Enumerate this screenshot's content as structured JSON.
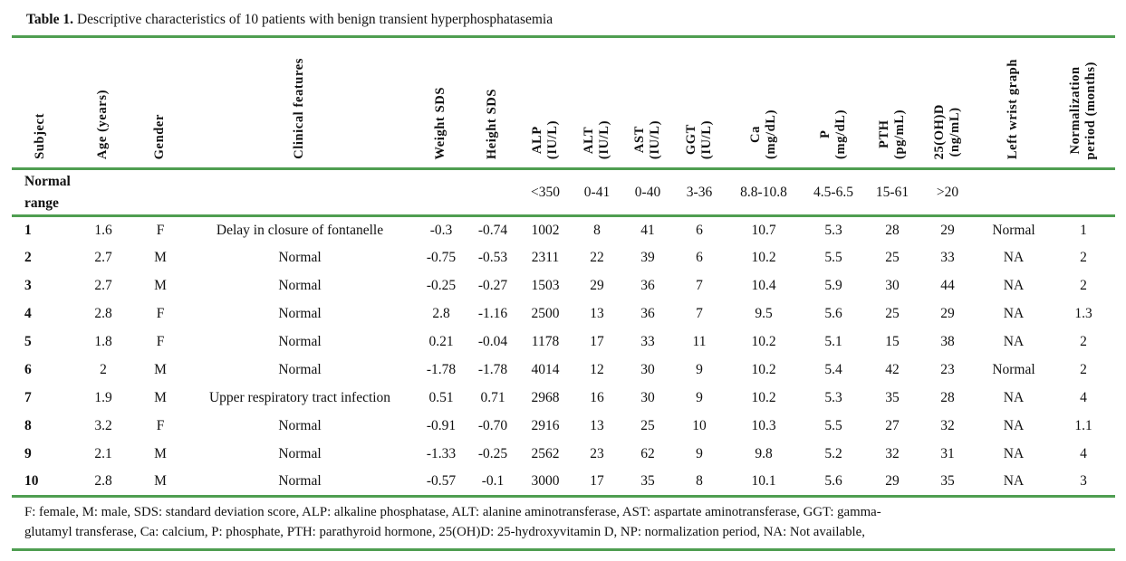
{
  "title": {
    "prefix": "Table 1.",
    "text": "Descriptive characteristics of 10 patients with benign transient hyperphosphatasemia"
  },
  "table": {
    "columns": [
      {
        "id": "subject",
        "label_lines": [
          "Subject"
        ]
      },
      {
        "id": "age",
        "label_lines": [
          "Age (years)"
        ]
      },
      {
        "id": "gender",
        "label_lines": [
          "Gender"
        ]
      },
      {
        "id": "clinical",
        "label_lines": [
          "Clinical features"
        ]
      },
      {
        "id": "weight_sds",
        "label_lines": [
          "Weight SDS"
        ]
      },
      {
        "id": "height_sds",
        "label_lines": [
          "Height SDS"
        ]
      },
      {
        "id": "alp",
        "label_lines": [
          "ALP",
          "(IU/L)"
        ]
      },
      {
        "id": "alt",
        "label_lines": [
          "ALT",
          "(IU/L)"
        ]
      },
      {
        "id": "ast",
        "label_lines": [
          "AST",
          "(IU/L)"
        ]
      },
      {
        "id": "ggt",
        "label_lines": [
          "GGT",
          "(IU/L)"
        ]
      },
      {
        "id": "ca",
        "label_lines": [
          "Ca",
          "(mg/dL)"
        ]
      },
      {
        "id": "p",
        "label_lines": [
          "P",
          "(mg/dL)"
        ]
      },
      {
        "id": "pth",
        "label_lines": [
          "PTH",
          "(pg/mL)"
        ]
      },
      {
        "id": "vitd",
        "label_lines": [
          "25(OH)D",
          "(ng/mL)"
        ]
      },
      {
        "id": "wrist",
        "label_lines": [
          "Left wrist graph"
        ]
      },
      {
        "id": "np",
        "label_lines": [
          "Normalization",
          "period (months)"
        ]
      }
    ],
    "normal_range": {
      "label_lines": [
        "Normal",
        "range"
      ],
      "values": {
        "alp": "<350",
        "alt": "0-41",
        "ast": "0-40",
        "ggt": "3-36",
        "ca": "8.8-10.8",
        "p": "4.5-6.5",
        "pth": "15-61",
        "vitd": ">20"
      }
    },
    "rows": [
      [
        "1",
        "1.6",
        "F",
        "Delay in closure of fontanelle",
        "-0.3",
        "-0.74",
        "1002",
        "8",
        "41",
        "6",
        "10.7",
        "5.3",
        "28",
        "29",
        "Normal",
        "1"
      ],
      [
        "2",
        "2.7",
        "M",
        "Normal",
        "-0.75",
        "-0.53",
        "2311",
        "22",
        "39",
        "6",
        "10.2",
        "5.5",
        "25",
        "33",
        "NA",
        "2"
      ],
      [
        "3",
        "2.7",
        "M",
        "Normal",
        "-0.25",
        "-0.27",
        "1503",
        "29",
        "36",
        "7",
        "10.4",
        "5.9",
        "30",
        "44",
        "NA",
        "2"
      ],
      [
        "4",
        "2.8",
        "F",
        "Normal",
        "2.8",
        "-1.16",
        "2500",
        "13",
        "36",
        "7",
        "9.5",
        "5.6",
        "25",
        "29",
        "NA",
        "1.3"
      ],
      [
        "5",
        "1.8",
        "F",
        "Normal",
        "0.21",
        "-0.04",
        "1178",
        "17",
        "33",
        "11",
        "10.2",
        "5.1",
        "15",
        "38",
        "NA",
        "2"
      ],
      [
        "6",
        "2",
        "M",
        "Normal",
        "-1.78",
        "-1.78",
        "4014",
        "12",
        "30",
        "9",
        "10.2",
        "5.4",
        "42",
        "23",
        "Normal",
        "2"
      ],
      [
        "7",
        "1.9",
        "M",
        "Upper respiratory tract infection",
        "0.51",
        "0.71",
        "2968",
        "16",
        "30",
        "9",
        "10.2",
        "5.3",
        "35",
        "28",
        "NA",
        "4"
      ],
      [
        "8",
        "3.2",
        "F",
        "Normal",
        "-0.91",
        "-0.70",
        "2916",
        "13",
        "25",
        "10",
        "10.3",
        "5.5",
        "27",
        "32",
        "NA",
        "1.1"
      ],
      [
        "9",
        "2.1",
        "M",
        "Normal",
        "-1.33",
        "-0.25",
        "2562",
        "23",
        "62",
        "9",
        "9.8",
        "5.2",
        "32",
        "31",
        "NA",
        "4"
      ],
      [
        "10",
        "2.8",
        "M",
        "Normal",
        "-0.57",
        "-0.1",
        "3000",
        "17",
        "35",
        "8",
        "10.1",
        "5.6",
        "29",
        "35",
        "NA",
        "3"
      ]
    ]
  },
  "footer": {
    "line1": "F: female, M: male, SDS: standard deviation score, ALP: alkaline phosphatase, ALT: alanine aminotransferase, AST: aspartate aminotransferase, GGT: gamma-",
    "line2": "glutamyl transferase, Ca: calcium, P: phosphate, PTH: parathyroid hormone, 25(OH)D: 25-hydroxyvitamin D, NP: normalization period, NA: Not available,"
  },
  "colors": {
    "rule_green": "#4f9e51",
    "text": "#111111"
  }
}
